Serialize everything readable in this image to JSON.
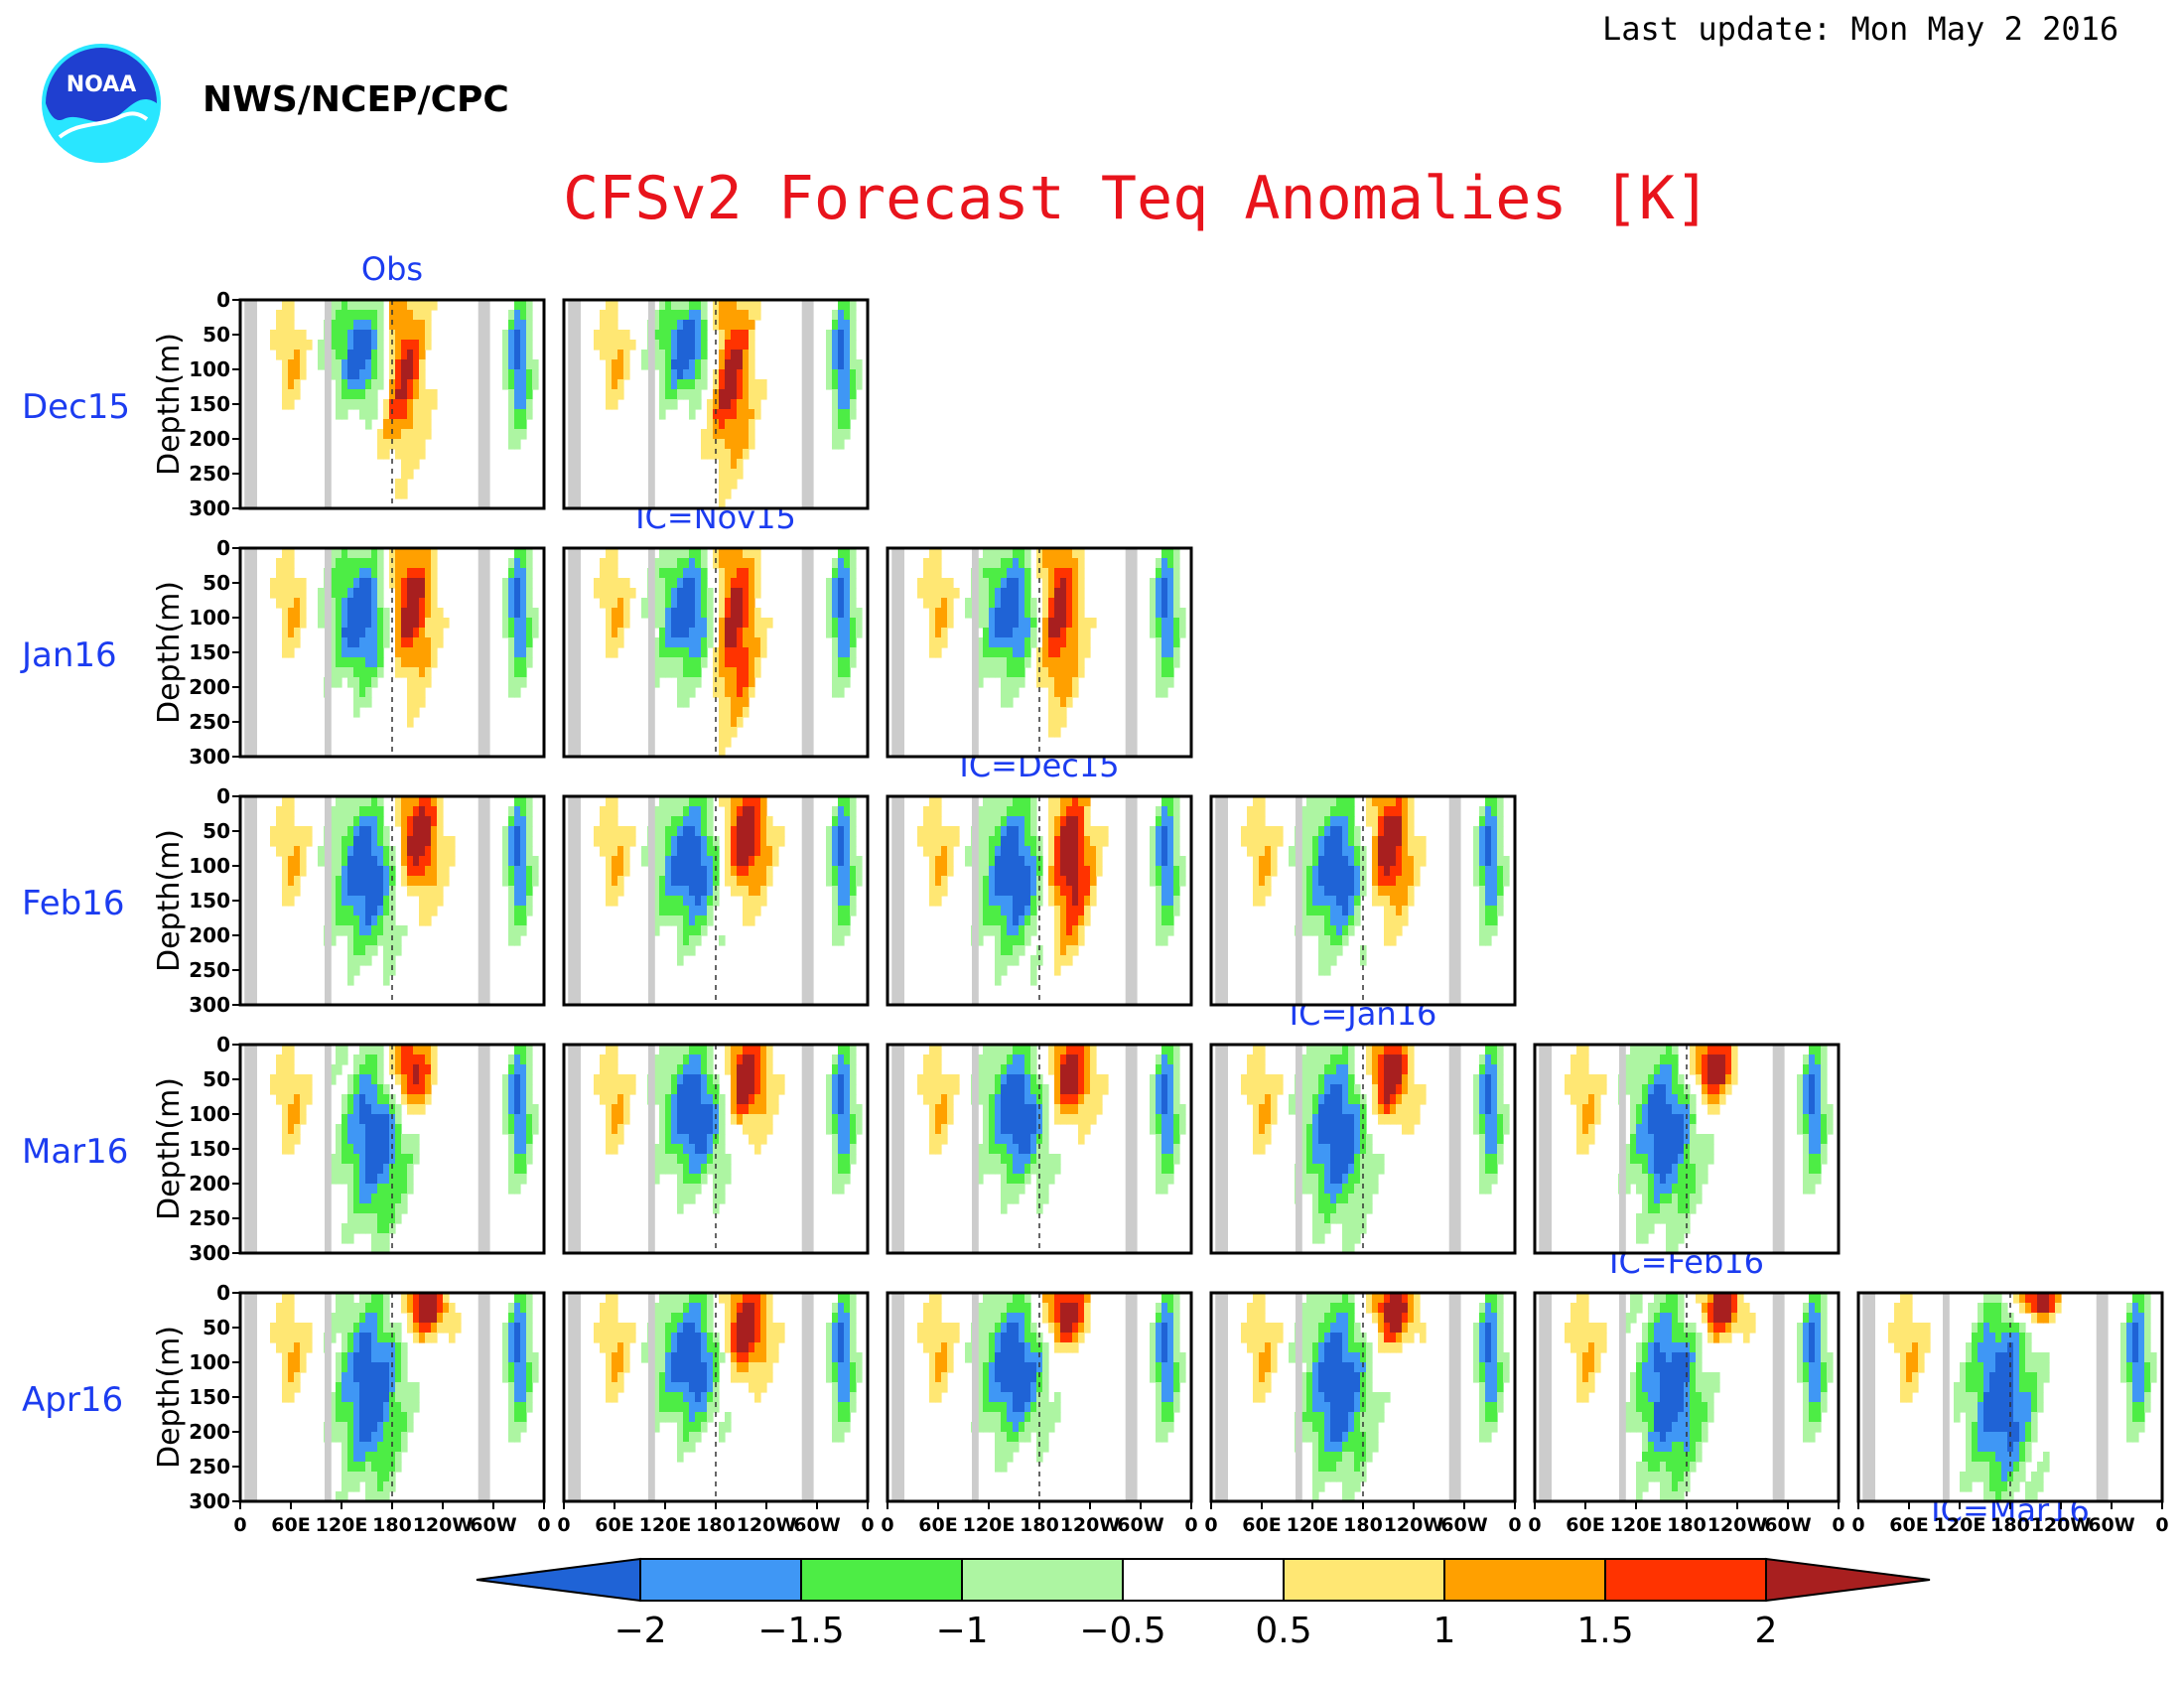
{
  "header": {
    "last_update": "Last update: Mon May 2 2016",
    "agency": "NWS/NCEP/CPC",
    "logo_text": "NOAA",
    "title": "CFSv2 Forecast Teq Anomalies [K]"
  },
  "colors": {
    "title": "#e8141c",
    "labels": "#1c3cf0",
    "land_mask": "#cccccc",
    "bins": [
      "#1f63d6",
      "#3f97f5",
      "#4ded45",
      "#adf5a2",
      "#ffffff",
      "#ffe773",
      "#ffa000",
      "#ff3300",
      "#a81f1f"
    ]
  },
  "chart_data": {
    "type": "heatmap",
    "title": "CFSv2 Forecast Teq Anomalies [K]",
    "ylabel": "Depth(m)",
    "y_ticks": [
      0,
      50,
      100,
      150,
      200,
      250,
      300
    ],
    "ylim": [
      300,
      0
    ],
    "x_ticks": [
      "0",
      "60E",
      "120E",
      "180",
      "120W",
      "60W",
      "0"
    ],
    "xlim": [
      0,
      360
    ],
    "columns": [
      "Obs",
      "IC=Nov15",
      "IC=Dec15",
      "IC=Jan16",
      "IC=Feb16",
      "IC=Mar16"
    ],
    "rows": [
      "Dec15",
      "Jan16",
      "Feb16",
      "Mar16",
      "Apr16"
    ],
    "legend": {
      "levels": [
        -2,
        -1.5,
        -1,
        -0.5,
        0.5,
        1,
        1.5,
        2
      ],
      "labels": [
        "−2",
        "−1.5",
        "−1",
        "−0.5",
        "0.5",
        "1",
        "1.5",
        "2"
      ]
    },
    "panels": [
      {
        "row": 0,
        "col": 0,
        "warm_lon": 190,
        "warm_depth": 170,
        "cool_lon": 148,
        "cool_depth": 110
      },
      {
        "row": 0,
        "col": 1,
        "warm_lon": 195,
        "warm_depth": 180,
        "cool_lon": 150,
        "cool_depth": 100
      },
      {
        "row": 1,
        "col": 0,
        "warm_lon": 200,
        "warm_depth": 150,
        "cool_lon": 145,
        "cool_depth": 140
      },
      {
        "row": 1,
        "col": 1,
        "warm_lon": 200,
        "warm_depth": 190,
        "cool_lon": 150,
        "cool_depth": 130
      },
      {
        "row": 1,
        "col": 2,
        "warm_lon": 200,
        "warm_depth": 170,
        "cool_lon": 150,
        "cool_depth": 130
      },
      {
        "row": 2,
        "col": 0,
        "warm_lon": 210,
        "warm_depth": 110,
        "cool_lon": 150,
        "cool_depth": 160
      },
      {
        "row": 2,
        "col": 1,
        "warm_lon": 215,
        "warm_depth": 110,
        "cool_lon": 150,
        "cool_depth": 140
      },
      {
        "row": 2,
        "col": 2,
        "warm_lon": 215,
        "warm_depth": 170,
        "cool_lon": 150,
        "cool_depth": 160
      },
      {
        "row": 2,
        "col": 3,
        "warm_lon": 210,
        "warm_depth": 130,
        "cool_lon": 150,
        "cool_depth": 150
      },
      {
        "row": 3,
        "col": 0,
        "warm_lon": 200,
        "warm_depth": 70,
        "cool_lon": 160,
        "cool_depth": 190
      },
      {
        "row": 3,
        "col": 1,
        "warm_lon": 215,
        "warm_depth": 90,
        "cool_lon": 155,
        "cool_depth": 140
      },
      {
        "row": 3,
        "col": 2,
        "warm_lon": 215,
        "warm_depth": 80,
        "cool_lon": 155,
        "cool_depth": 140
      },
      {
        "row": 3,
        "col": 3,
        "warm_lon": 210,
        "warm_depth": 80,
        "cool_lon": 150,
        "cool_depth": 180
      },
      {
        "row": 3,
        "col": 4,
        "warm_lon": 210,
        "warm_depth": 60,
        "cool_lon": 155,
        "cool_depth": 180
      },
      {
        "row": 4,
        "col": 0,
        "warm_lon": 220,
        "warm_depth": 40,
        "cool_lon": 155,
        "cool_depth": 200
      },
      {
        "row": 4,
        "col": 1,
        "warm_lon": 215,
        "warm_depth": 90,
        "cool_lon": 150,
        "cool_depth": 140
      },
      {
        "row": 4,
        "col": 2,
        "warm_lon": 210,
        "warm_depth": 50,
        "cool_lon": 150,
        "cool_depth": 150
      },
      {
        "row": 4,
        "col": 3,
        "warm_lon": 215,
        "warm_depth": 50,
        "cool_lon": 150,
        "cool_depth": 190
      },
      {
        "row": 4,
        "col": 4,
        "warm_lon": 220,
        "warm_depth": 40,
        "cool_lon": 160,
        "cool_depth": 200
      },
      {
        "row": 4,
        "col": 5,
        "warm_lon": 210,
        "warm_depth": 20,
        "cool_lon": 170,
        "cool_depth": 210
      }
    ]
  }
}
